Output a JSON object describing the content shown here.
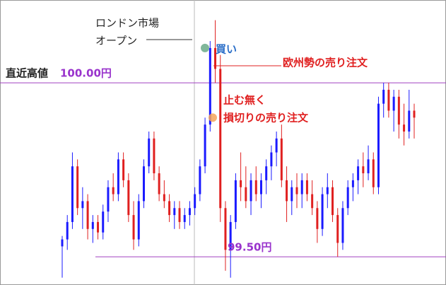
{
  "chart_data": {
    "type": "candlestick",
    "ylim": [
      99.419,
      100.238
    ],
    "up_color": "#1a1aff",
    "down_color": "#e02020",
    "open": [
      99.53,
      99.55,
      99.6,
      99.76,
      99.64,
      99.66,
      99.58,
      99.6,
      99.57,
      99.63,
      99.7,
      99.68,
      99.78,
      99.72,
      99.62,
      99.55,
      99.66,
      99.76,
      99.84,
      99.74,
      99.68,
      99.66,
      99.62,
      99.64,
      99.6,
      99.62,
      99.64,
      99.68,
      99.76,
      99.88,
      100.1,
      100.04,
      99.64,
      99.52,
      99.6,
      99.72,
      99.7,
      99.66,
      99.72,
      99.68,
      99.72,
      99.76,
      99.8,
      99.84,
      99.72,
      99.66,
      99.7,
      99.68,
      99.72,
      99.68,
      99.64,
      99.58,
      99.68,
      99.7,
      99.62,
      99.54,
      99.64,
      99.7,
      99.72,
      99.76,
      99.74,
      99.78,
      99.7,
      99.94,
      99.98,
      99.92,
      99.96,
      99.88,
      99.86,
      99.92
    ],
    "high": [
      99.56,
      99.62,
      99.8,
      99.78,
      99.7,
      99.68,
      99.62,
      99.62,
      99.65,
      99.72,
      99.74,
      99.8,
      99.8,
      99.74,
      99.66,
      99.68,
      99.78,
      99.86,
      99.86,
      99.76,
      99.72,
      99.68,
      99.66,
      99.66,
      99.64,
      99.66,
      99.7,
      99.78,
      99.9,
      100.12,
      100.18,
      100.08,
      99.66,
      99.62,
      99.74,
      99.8,
      99.76,
      99.74,
      99.76,
      99.74,
      99.78,
      99.82,
      99.86,
      99.88,
      99.76,
      99.72,
      99.74,
      99.74,
      99.74,
      99.72,
      99.66,
      99.7,
      99.74,
      99.72,
      99.64,
      99.66,
      99.72,
      99.74,
      99.78,
      99.8,
      99.82,
      99.8,
      99.96,
      100.0,
      100.0,
      99.98,
      99.98,
      99.94,
      99.98,
      99.94
    ],
    "low": [
      99.44,
      99.52,
      99.58,
      99.62,
      99.58,
      99.55,
      99.54,
      99.55,
      99.55,
      99.6,
      99.66,
      99.66,
      99.7,
      99.6,
      99.52,
      99.53,
      99.64,
      99.74,
      99.72,
      99.66,
      99.64,
      99.6,
      99.58,
      99.58,
      99.58,
      99.59,
      99.62,
      99.66,
      99.74,
      99.86,
      100.0,
      99.6,
      99.46,
      99.44,
      99.58,
      99.66,
      99.64,
      99.62,
      99.66,
      99.64,
      99.68,
      99.72,
      99.76,
      99.7,
      99.6,
      99.62,
      99.64,
      99.64,
      99.66,
      99.62,
      99.54,
      99.56,
      99.64,
      99.6,
      99.5,
      99.52,
      99.62,
      99.66,
      99.68,
      99.7,
      99.72,
      99.68,
      99.68,
      99.9,
      99.9,
      99.86,
      99.84,
      99.82,
      99.84,
      99.84
    ],
    "close": [
      99.55,
      99.6,
      99.76,
      99.64,
      99.66,
      99.58,
      99.6,
      99.57,
      99.63,
      99.7,
      99.68,
      99.78,
      99.72,
      99.62,
      99.55,
      99.66,
      99.76,
      99.84,
      99.74,
      99.68,
      99.66,
      99.62,
      99.64,
      99.6,
      99.62,
      99.64,
      99.68,
      99.76,
      99.88,
      100.1,
      100.04,
      99.64,
      99.52,
      99.6,
      99.72,
      99.7,
      99.66,
      99.72,
      99.68,
      99.72,
      99.76,
      99.8,
      99.84,
      99.72,
      99.66,
      99.7,
      99.68,
      99.72,
      99.68,
      99.64,
      99.58,
      99.68,
      99.7,
      99.62,
      99.54,
      99.64,
      99.7,
      99.72,
      99.76,
      99.74,
      99.78,
      99.7,
      99.94,
      99.98,
      99.92,
      99.96,
      99.88,
      99.86,
      99.92,
      99.9
    ],
    "hlines": [
      {
        "value": 100.0,
        "name": "直近高値",
        "label": "100.00円",
        "color": "#a040c0"
      },
      {
        "value": 99.5,
        "label": "99.50円",
        "color": "#a040c0"
      }
    ],
    "markers": [
      {
        "value": 100.1,
        "label": "買い",
        "color": "#6aaa88"
      },
      {
        "value": 99.9,
        "label_lines": [
          "止む無く",
          "損切りの売り注文"
        ],
        "color": "#f5a45a"
      }
    ],
    "annotations": {
      "london_open": [
        "ロンドン市場",
        "オープン"
      ],
      "europe_sell": "欧州勢の売り注文"
    }
  }
}
